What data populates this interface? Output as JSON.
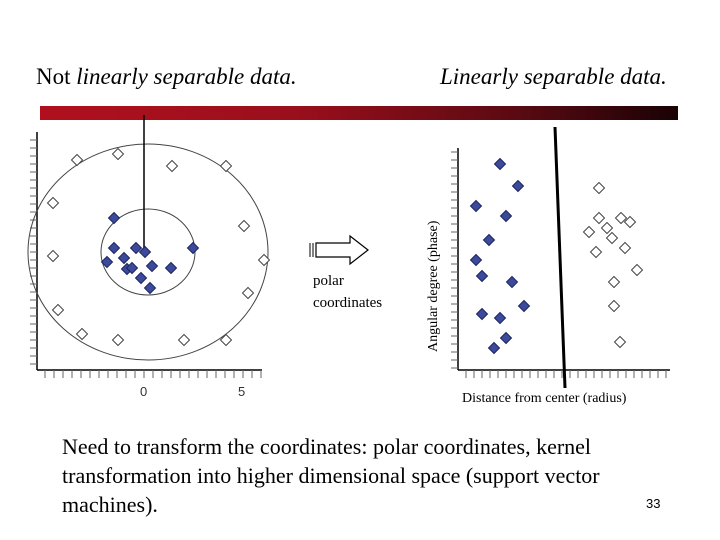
{
  "slide": {
    "title_left_prefix": "Not ",
    "title_left_italic": "linearly separable data.",
    "title_right": "Linearly separable data.",
    "transform_label_line1": "polar",
    "transform_label_line2": "coordinates",
    "right_plot_ylabel": "Angular degree (phase)",
    "right_plot_xlabel": "Distance from center (radius)",
    "left_plot_tick_0": "0",
    "left_plot_tick_5": "5",
    "body_text": "Need to transform the coordinates: polar coordinates, kernel transformation into higher dimensional space (support vector machines).",
    "page_number": "33",
    "colors": {
      "title_bar_start": "#b0101e",
      "title_bar_end": "#1a0205",
      "filled_marker": "#3b4a9a",
      "open_marker_stroke": "#444444"
    },
    "icons": [
      "filled-diamond-marker",
      "open-diamond-marker",
      "right-arrow-icon"
    ]
  }
}
